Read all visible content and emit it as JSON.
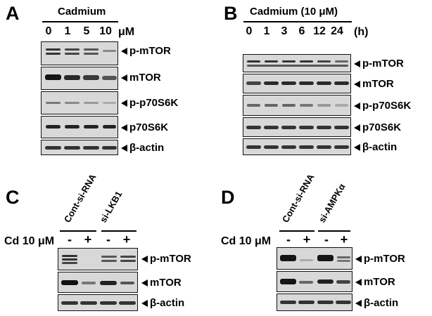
{
  "panels": {
    "A": {
      "letter": "A",
      "header": "Cadmium",
      "lanes": [
        "0",
        "1",
        "5",
        "10"
      ],
      "unit": "μM",
      "rows": [
        "p-mTOR",
        "mTOR",
        "p-p70S6K",
        "p70S6K",
        "β-actin"
      ]
    },
    "B": {
      "letter": "B",
      "header": "Cadmium (10 μM)",
      "lanes": [
        "0",
        "1",
        "3",
        "6",
        "12",
        "24"
      ],
      "unit": "(h)",
      "rows": [
        "p-mTOR",
        "mTOR",
        "p-p70S6K",
        "p70S6K",
        "β-actin"
      ]
    },
    "C": {
      "letter": "C",
      "groups": [
        "Cont-si-RNA",
        "si-LKB1"
      ],
      "treatment_label": "Cd 10 μM",
      "treatments": [
        "-",
        "+",
        "-",
        "+"
      ],
      "rows": [
        "p-mTOR",
        "mTOR",
        "β-actin"
      ]
    },
    "D": {
      "letter": "D",
      "groups": [
        "Cont-si-RNA",
        "si-AMPKα"
      ],
      "treatment_label": "Cd 10 μM",
      "treatments": [
        "-",
        "+",
        "-",
        "+"
      ],
      "rows": [
        "p-mTOR",
        "mTOR",
        "β-actin"
      ]
    }
  }
}
